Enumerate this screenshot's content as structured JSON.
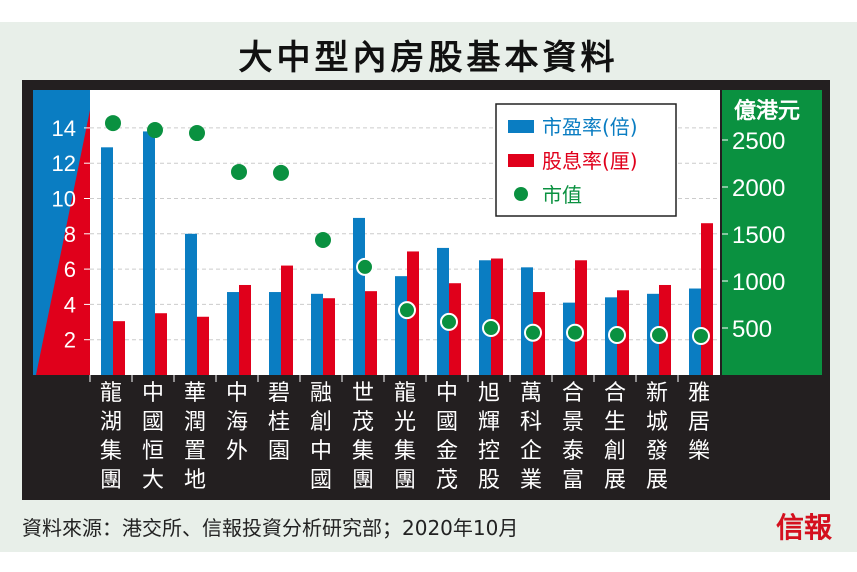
{
  "title": "大中型內房股基本資料",
  "source": "資料來源：港交所、信報投資分析研究部；2020年10月",
  "logo": "信報",
  "chart_data": {
    "type": "bar",
    "title": "大中型內房股基本資料",
    "categories": [
      "龍湖集團",
      "中國恒大",
      "華潤置地",
      "中海外",
      "碧桂園",
      "融創中國",
      "世茂集團",
      "龍光集團",
      "中國金茂",
      "旭輝控股",
      "萬科企業",
      "合景泰富",
      "合生創展",
      "新城發展",
      "雅居樂"
    ],
    "series": [
      {
        "name": "市盈率(倍)",
        "axis": "left",
        "color": "#0a7dc2",
        "values": [
          12.9,
          13.8,
          8.0,
          4.7,
          4.7,
          4.6,
          8.9,
          5.6,
          7.2,
          6.5,
          6.1,
          4.1,
          4.4,
          4.6,
          4.9
        ]
      },
      {
        "name": "股息率(厘)",
        "axis": "left",
        "color": "#e0001b",
        "values": [
          3.05,
          3.5,
          3.3,
          5.1,
          6.2,
          4.35,
          4.75,
          7.0,
          5.2,
          6.6,
          4.7,
          6.5,
          4.8,
          5.1,
          8.6
        ]
      },
      {
        "name": "市值",
        "axis": "right",
        "type": "scatter",
        "color": "#0a9140",
        "values": [
          2680,
          2606,
          2574,
          2160,
          2150,
          1436,
          1150,
          690,
          565,
          500,
          450,
          450,
          425,
          425,
          415
        ]
      }
    ],
    "left_axis": {
      "ticks": [
        "2",
        "4",
        "6",
        "8",
        "10",
        "12",
        "14"
      ],
      "range": [
        0,
        15.5
      ]
    },
    "right_axis": {
      "label": "億港元",
      "ticks": [
        "500",
        "1000",
        "1500",
        "2000",
        "2500"
      ],
      "range": [
        0,
        2900
      ]
    },
    "legend": {
      "position": "top-right"
    },
    "grid": true
  }
}
